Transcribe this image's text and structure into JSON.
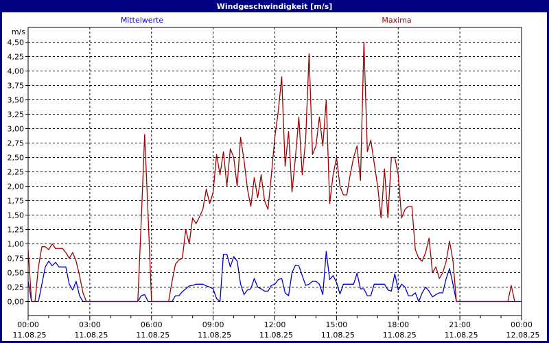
{
  "window": {
    "title": "Windgeschwindigkeit [m/s]",
    "title_bg": "#000080",
    "title_color": "#FFFFFF",
    "border_color": "#000080"
  },
  "legend": {
    "mittelwerte": {
      "label": "Mittelwerte",
      "color": "#0000C8"
    },
    "maxima": {
      "label": "Maxima",
      "color": "#A00000"
    }
  },
  "chart_data": {
    "type": "line",
    "title": "Windgeschwindigkeit [m/s]",
    "ylabel": "m/s",
    "ylim": [
      0,
      4.5
    ],
    "ytick_step": 0.25,
    "ytick_values": [
      0,
      0.25,
      0.5,
      0.75,
      1,
      1.25,
      1.5,
      1.75,
      2,
      2.25,
      2.5,
      2.75,
      3,
      3.25,
      3.5,
      3.75,
      4,
      4.25,
      4.5
    ],
    "ytick_labels": [
      "0,00",
      "0,25",
      "0,50",
      "0,75",
      "1,00",
      "1,25",
      "1,50",
      "1,75",
      "2,00",
      "2,25",
      "2,50",
      "2,75",
      "3,00",
      "3,25",
      "3,50",
      "3,75",
      "4,00",
      "4,25",
      "4,50"
    ],
    "xlim_minutes": [
      0,
      1440
    ],
    "x_interval_minutes": 10,
    "grid": "dashed",
    "legend_position": "top",
    "xticks": [
      {
        "minutes": 0,
        "time": "00:00",
        "date": "11.08.25"
      },
      {
        "minutes": 180,
        "time": "03:00",
        "date": "11.08.25"
      },
      {
        "minutes": 360,
        "time": "06:00",
        "date": "11.08.25"
      },
      {
        "minutes": 540,
        "time": "09:00",
        "date": "11.08.25"
      },
      {
        "minutes": 720,
        "time": "12:00",
        "date": "11.08.25"
      },
      {
        "minutes": 900,
        "time": "15:00",
        "date": "11.08.25"
      },
      {
        "minutes": 1080,
        "time": "18:00",
        "date": "11.08.25"
      },
      {
        "minutes": 1260,
        "time": "21:00",
        "date": "11.08.25"
      },
      {
        "minutes": 1440,
        "time": "00:00",
        "date": "12.08.25"
      }
    ],
    "series": [
      {
        "name": "Mittelwerte",
        "color": "#0000C8",
        "values": [
          0.35,
          0,
          0,
          0,
          0.3,
          0.6,
          0.7,
          0.62,
          0.68,
          0.6,
          0.6,
          0.6,
          0.3,
          0.2,
          0.35,
          0.1,
          0,
          0,
          0,
          0,
          0,
          0,
          0,
          0,
          0,
          0,
          0,
          0,
          0,
          0,
          0,
          0,
          0,
          0.1,
          0.12,
          0,
          0,
          0,
          0,
          0,
          0,
          0,
          0,
          0.1,
          0.1,
          0.17,
          0.22,
          0.27,
          0.28,
          0.3,
          0.3,
          0.3,
          0.27,
          0.25,
          0.22,
          0.05,
          0,
          0.82,
          0.82,
          0.6,
          0.78,
          0.7,
          0.3,
          0.12,
          0.2,
          0.22,
          0.4,
          0.25,
          0.22,
          0.18,
          0.18,
          0.28,
          0.3,
          0.38,
          0.4,
          0.15,
          0.1,
          0.5,
          0.63,
          0.62,
          0.45,
          0.28,
          0.3,
          0.35,
          0.35,
          0.3,
          0.12,
          0.87,
          0.38,
          0.45,
          0.33,
          0.13,
          0.3,
          0.3,
          0.3,
          0.3,
          0.49,
          0.22,
          0.22,
          0.1,
          0.1,
          0.3,
          0.3,
          0.3,
          0.3,
          0.2,
          0.18,
          0.48,
          0.2,
          0.3,
          0.25,
          0.1,
          0.1,
          0.15,
          0,
          0.15,
          0.25,
          0.18,
          0.08,
          0.12,
          0.15,
          0.15,
          0.4,
          0.57,
          0.3,
          0,
          0,
          0,
          0,
          0,
          0,
          0,
          0,
          0,
          0,
          0,
          0,
          0,
          0,
          0,
          0,
          0,
          0,
          0,
          0
        ]
      },
      {
        "name": "Maxima",
        "color": "#A00000",
        "values": [
          0.9,
          0,
          0,
          0.6,
          0.95,
          0.95,
          0.9,
          1.0,
          0.92,
          0.92,
          0.92,
          0.85,
          0.75,
          0.85,
          0.7,
          0.45,
          0.15,
          0,
          0,
          0,
          0,
          0,
          0,
          0,
          0,
          0,
          0,
          0,
          0,
          0,
          0,
          0,
          0,
          1.4,
          2.9,
          1.5,
          0,
          0,
          0,
          0,
          0,
          0,
          0.35,
          0.65,
          0.72,
          0.75,
          1.25,
          1.0,
          1.45,
          1.35,
          1.47,
          1.6,
          1.95,
          1.7,
          1.9,
          2.55,
          2.2,
          2.6,
          2.0,
          2.65,
          2.5,
          2.0,
          2.85,
          2.45,
          1.95,
          1.65,
          2.15,
          1.8,
          2.2,
          1.75,
          1.6,
          2.2,
          2.85,
          3.3,
          3.9,
          2.35,
          2.95,
          1.9,
          2.5,
          3.2,
          2.2,
          2.8,
          4.3,
          2.55,
          2.7,
          3.2,
          2.7,
          3.5,
          1.7,
          2.2,
          2.5,
          2.0,
          1.85,
          1.85,
          2.2,
          2.5,
          2.7,
          2.1,
          4.5,
          2.6,
          2.8,
          2.4,
          2.0,
          1.45,
          2.3,
          1.45,
          2.5,
          2.5,
          2.2,
          1.45,
          1.6,
          1.65,
          1.65,
          0.9,
          0.75,
          0.7,
          0.85,
          1.1,
          0.5,
          0.6,
          0.4,
          0.5,
          0.7,
          1.05,
          0.7,
          0,
          0,
          0,
          0,
          0,
          0,
          0,
          0,
          0,
          0,
          0,
          0,
          0,
          0,
          0,
          0,
          0.28,
          0,
          0
        ]
      }
    ]
  }
}
